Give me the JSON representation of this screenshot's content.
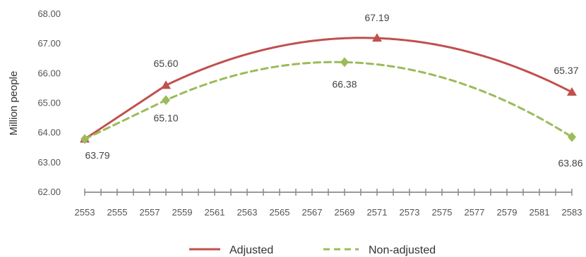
{
  "chart_data": {
    "type": "line",
    "title": "",
    "xlabel": "",
    "ylabel": "Million  people",
    "xlim": [
      2553,
      2583
    ],
    "ylim": [
      62.0,
      68.0
    ],
    "grid": false,
    "legend_position": "bottom",
    "x_ticks": [
      2553,
      2555,
      2557,
      2559,
      2561,
      2563,
      2565,
      2567,
      2569,
      2571,
      2573,
      2575,
      2577,
      2579,
      2581,
      2583
    ],
    "y_ticks": [
      62.0,
      63.0,
      64.0,
      65.0,
      66.0,
      67.0,
      68.0
    ],
    "y_tick_labels": [
      "62.00",
      "63.00",
      "64.00",
      "65.00",
      "66.00",
      "67.00",
      "68.00"
    ],
    "series": [
      {
        "name": "Adjusted",
        "color": "#c0504d",
        "line_style": "solid",
        "marker": "triangle",
        "points": [
          {
            "x": 2553,
            "y": 63.79,
            "label": "63.79"
          },
          {
            "x": 2558,
            "y": 65.6,
            "label": "65.60"
          },
          {
            "x": 2571,
            "y": 67.19,
            "label": "67.19"
          },
          {
            "x": 2583,
            "y": 65.37,
            "label": "65.37"
          }
        ]
      },
      {
        "name": "Non-adjusted",
        "color": "#9bbb59",
        "line_style": "dashed",
        "marker": "diamond",
        "points": [
          {
            "x": 2553,
            "y": 63.79,
            "label": ""
          },
          {
            "x": 2558,
            "y": 65.1,
            "label": "65.10"
          },
          {
            "x": 2569,
            "y": 66.38,
            "label": "66.38"
          },
          {
            "x": 2583,
            "y": 63.86,
            "label": "63.86"
          }
        ]
      }
    ],
    "shared_label": {
      "x": 2553,
      "y": 63.79,
      "label": "63.79"
    }
  }
}
